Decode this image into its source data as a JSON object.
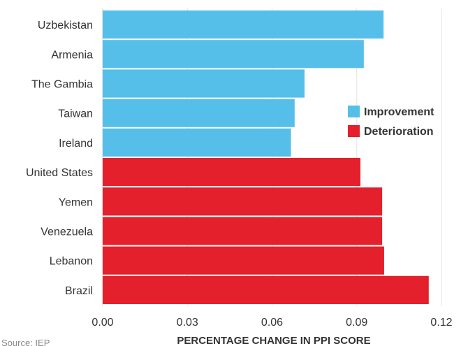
{
  "chart_data": {
    "type": "bar",
    "orientation": "horizontal",
    "categories": [
      "Uzbekistan",
      "Armenia",
      "The Gambia",
      "Taiwan",
      "Ireland",
      "United States",
      "Yemen",
      "Venezuela",
      "Lebanon",
      "Brazil"
    ],
    "values": [
      0.0995,
      0.0925,
      0.0715,
      0.068,
      0.0667,
      0.0913,
      0.099,
      0.099,
      0.0997,
      0.1155
    ],
    "groups": [
      "Improvement",
      "Improvement",
      "Improvement",
      "Improvement",
      "Improvement",
      "Deterioration",
      "Deterioration",
      "Deterioration",
      "Deterioration",
      "Deterioration"
    ],
    "legend": [
      {
        "name": "Improvement",
        "color": "#55bfea"
      },
      {
        "name": "Deterioration",
        "color": "#e3202b"
      }
    ],
    "legend_position": "right",
    "xlim": [
      0,
      0.12
    ],
    "xticks": [
      "0.00",
      "0.03",
      "0.06",
      "0.09",
      "0.12"
    ],
    "xtick_values": [
      0,
      0.03,
      0.06,
      0.09,
      0.12
    ],
    "xlabel": "PERCENTAGE CHANGE IN PPI SCORE",
    "grid": "vertical"
  },
  "source": "Source: IEP"
}
